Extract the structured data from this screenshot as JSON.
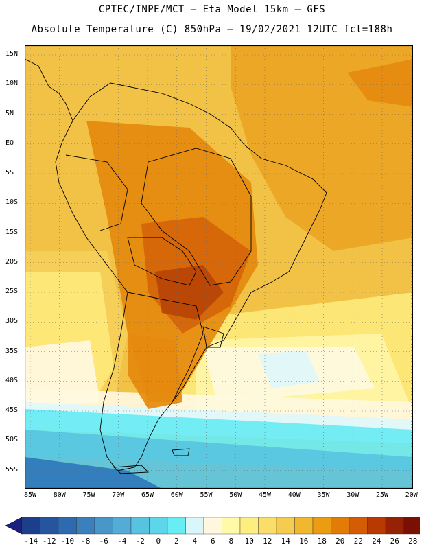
{
  "header": {
    "line1": "CPTEC/INPE/MCT —  Eta Model 15km — GFS",
    "line2": "Absolute Temperature (C) 850hPa — 19/02/2021 12UTC fct=188h"
  },
  "lat_labels": [
    "15N",
    "10N",
    "5N",
    "EQ",
    "5S",
    "10S",
    "15S",
    "20S",
    "25S",
    "30S",
    "35S",
    "40S",
    "45S",
    "50S",
    "55S"
  ],
  "lon_labels": [
    "85W",
    "80W",
    "75W",
    "70W",
    "65W",
    "60W",
    "55W",
    "50W",
    "45W",
    "40W",
    "35W",
    "30W",
    "25W",
    "20W"
  ],
  "colorbar": {
    "labels": [
      "-14",
      "-12",
      "-10",
      "-8",
      "-6",
      "-4",
      "-2",
      "0",
      "2",
      "4",
      "6",
      "8",
      "10",
      "12",
      "14",
      "16",
      "18",
      "20",
      "22",
      "24",
      "26",
      "28"
    ],
    "colors": [
      "#1c3f8c",
      "#25559f",
      "#2e6aaf",
      "#3a80bd",
      "#4797c9",
      "#52acd6",
      "#58c3e1",
      "#5ed6ea",
      "#66eef4",
      "#d9f6fb",
      "#fff8df",
      "#fff9a8",
      "#fdee80",
      "#f9de69",
      "#f5cc4f",
      "#f0b72f",
      "#eb9c12",
      "#e37c07",
      "#d45c04",
      "#b83a02",
      "#962204",
      "#7a1004"
    ],
    "under_color": "#1a1f80",
    "over_color": "#7a0033"
  },
  "palette": {
    "cold_deep": "#2f77bb",
    "cold": "#59c4e2",
    "cyan": "#69ecf4",
    "pale_cyan": "#dff7fb",
    "cream": "#fff8e0",
    "light_yellow": "#fff5a6",
    "yellow": "#fde97a",
    "gold": "#f6d05a",
    "orange_light": "#f2bf3c",
    "orange": "#eda524",
    "orange_dark": "#e58a0e",
    "red_orange": "#d6650a",
    "dark_red": "#b94407"
  }
}
